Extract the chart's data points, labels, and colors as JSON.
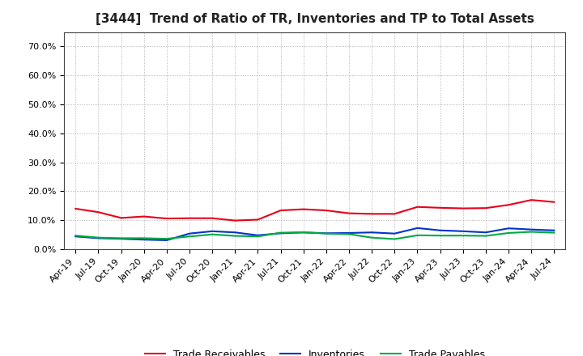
{
  "title": "[3444]  Trend of Ratio of TR, Inventories and TP to Total Assets",
  "x_labels": [
    "Apr-19",
    "Jul-19",
    "Oct-19",
    "Jan-20",
    "Apr-20",
    "Jul-20",
    "Oct-20",
    "Jan-21",
    "Apr-21",
    "Jul-21",
    "Oct-21",
    "Jan-22",
    "Apr-22",
    "Jul-22",
    "Oct-22",
    "Jan-23",
    "Apr-23",
    "Jul-23",
    "Oct-23",
    "Jan-24",
    "Apr-24",
    "Jul-24"
  ],
  "trade_receivables": [
    0.14,
    0.128,
    0.108,
    0.113,
    0.106,
    0.107,
    0.107,
    0.099,
    0.102,
    0.134,
    0.138,
    0.134,
    0.124,
    0.122,
    0.122,
    0.146,
    0.143,
    0.141,
    0.142,
    0.153,
    0.17,
    0.163
  ],
  "inventories": [
    0.044,
    0.038,
    0.036,
    0.033,
    0.031,
    0.054,
    0.062,
    0.058,
    0.048,
    0.055,
    0.058,
    0.055,
    0.056,
    0.058,
    0.054,
    0.073,
    0.065,
    0.062,
    0.058,
    0.072,
    0.068,
    0.065
  ],
  "trade_payables": [
    0.047,
    0.04,
    0.038,
    0.038,
    0.036,
    0.044,
    0.051,
    0.046,
    0.044,
    0.057,
    0.058,
    0.054,
    0.052,
    0.04,
    0.035,
    0.048,
    0.047,
    0.047,
    0.046,
    0.056,
    0.06,
    0.057
  ],
  "tr_color": "#e8001a",
  "inv_color": "#0033cc",
  "tp_color": "#00aa44",
  "ylim": [
    0.0,
    0.75
  ],
  "yticks": [
    0.0,
    0.1,
    0.2,
    0.3,
    0.4,
    0.5,
    0.6,
    0.7
  ],
  "ytick_labels": [
    "0.0%",
    "10.0%",
    "20.0%",
    "30.0%",
    "40.0%",
    "50.0%",
    "60.0%",
    "70.0%"
  ],
  "background_color": "#ffffff",
  "plot_background": "#ffffff",
  "grid_color": "#999999",
  "title_fontsize": 11,
  "tick_fontsize": 8,
  "legend_labels": [
    "Trade Receivables",
    "Inventories",
    "Trade Payables"
  ],
  "legend_fontsize": 9
}
